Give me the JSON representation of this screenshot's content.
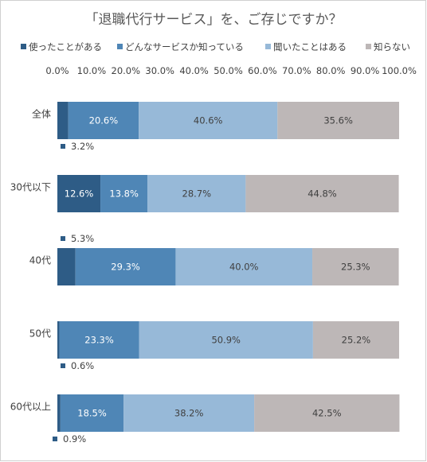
{
  "chart_data": {
    "type": "bar",
    "stacked": true,
    "orientation": "horizontal",
    "title": "「退職代行サービス」を、ご存じですか？",
    "categories": [
      "全体",
      "30代以下",
      "40代",
      "50代",
      "60代以上"
    ],
    "series": [
      {
        "name": "使ったことがある",
        "color": "#2e5c86",
        "values": [
          3.2,
          12.6,
          5.3,
          0.6,
          0.9
        ]
      },
      {
        "name": "どんなサービスか知っている",
        "color": "#4f86b6",
        "values": [
          20.6,
          13.8,
          29.3,
          23.3,
          18.5
        ]
      },
      {
        "name": "聞いたことはある",
        "color": "#97b9d8",
        "values": [
          40.6,
          28.7,
          40.0,
          50.9,
          38.2
        ]
      },
      {
        "name": "知らない",
        "color": "#bdb7b7",
        "values": [
          35.6,
          44.8,
          25.3,
          25.2,
          42.5
        ]
      }
    ],
    "xlim": [
      0,
      100
    ],
    "xticks": [
      "0.0%",
      "10.0%",
      "20.0%",
      "30.0%",
      "40.0%",
      "50.0%",
      "60.0%",
      "70.0%",
      "80.0%",
      "90.0%",
      "100.0%"
    ],
    "legend_position": "top",
    "grid": false
  }
}
